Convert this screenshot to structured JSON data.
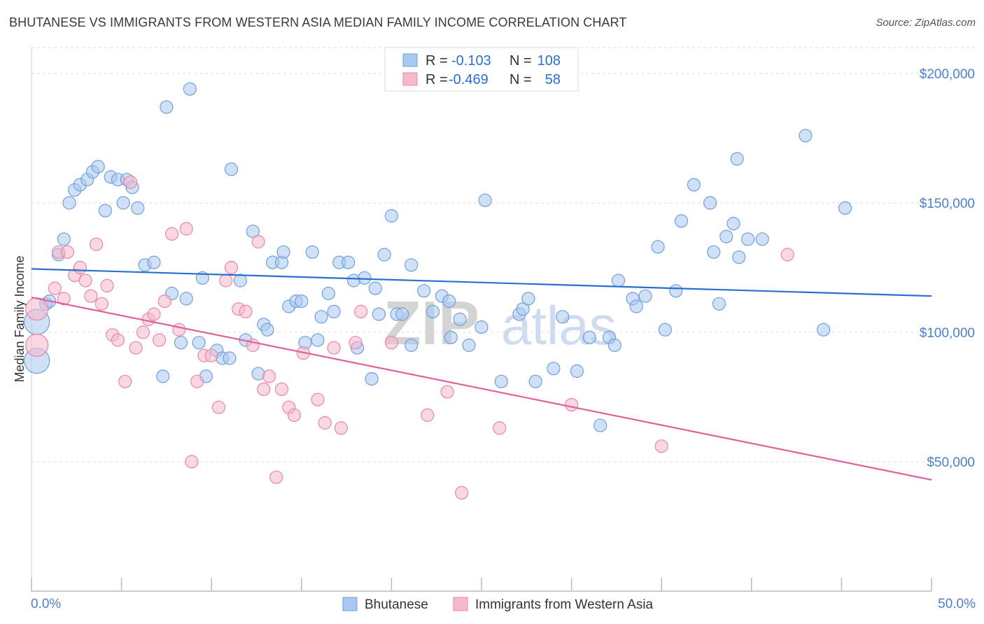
{
  "title": "BHUTANESE VS IMMIGRANTS FROM WESTERN ASIA MEDIAN FAMILY INCOME CORRELATION CHART",
  "source": "Source: ZipAtlas.com",
  "watermark": {
    "zip": "ZIP",
    "atlas": "atlas"
  },
  "legend_top": {
    "rows": [
      {
        "r_label": "R =",
        "r_value": "-0.103",
        "n_label": "N =",
        "n_value": "108"
      },
      {
        "r_label": "R =",
        "r_value": "-0.469",
        "n_label": "N =",
        "n_value": "58"
      }
    ]
  },
  "chart_data": {
    "type": "scatter",
    "title": "BHUTANESE VS IMMIGRANTS FROM WESTERN ASIA MEDIAN FAMILY INCOME CORRELATION CHART",
    "xlabel": "",
    "ylabel": "Median Family Income",
    "xlim": [
      0,
      50
    ],
    "ylim": [
      0,
      210000
    ],
    "x_tick_labels": [
      "0.0%",
      "50.0%"
    ],
    "y_ticks": [
      50000,
      100000,
      150000,
      200000
    ],
    "y_tick_labels": [
      "$50,000",
      "$100,000",
      "$150,000",
      "$200,000"
    ],
    "grid": "horizontal dashed",
    "legend_position": "bottom-center",
    "colors": {
      "blue_fill": "#a9c8f0",
      "blue_stroke": "#6f9fdc",
      "blue_line": "#2a6fcf",
      "pink_fill": "#f6b8cc",
      "pink_stroke": "#e886a8",
      "pink_line": "#e0609a",
      "tick_text": "#4a7fcc"
    },
    "series": [
      {
        "name": "Bhutanese",
        "trend": {
          "x": [
            0,
            50
          ],
          "y": [
            124500,
            114000
          ]
        },
        "points": [
          [
            0.3,
            104000
          ],
          [
            0.3,
            89000
          ],
          [
            0.8,
            111000
          ],
          [
            1.0,
            112000
          ],
          [
            1.5,
            130000
          ],
          [
            1.8,
            136000
          ],
          [
            2.1,
            150000
          ],
          [
            2.4,
            155000
          ],
          [
            2.7,
            157000
          ],
          [
            3.1,
            159000
          ],
          [
            3.4,
            162000
          ],
          [
            3.7,
            164000
          ],
          [
            4.1,
            147000
          ],
          [
            4.4,
            160000
          ],
          [
            4.8,
            159000
          ],
          [
            5.1,
            150000
          ],
          [
            5.3,
            159000
          ],
          [
            5.6,
            156000
          ],
          [
            5.9,
            148000
          ],
          [
            6.3,
            126000
          ],
          [
            6.8,
            127000
          ],
          [
            7.3,
            83000
          ],
          [
            7.5,
            187000
          ],
          [
            7.8,
            115000
          ],
          [
            8.3,
            96000
          ],
          [
            8.6,
            113000
          ],
          [
            8.8,
            194000
          ],
          [
            9.3,
            96000
          ],
          [
            9.5,
            121000
          ],
          [
            9.7,
            83000
          ],
          [
            10.3,
            93000
          ],
          [
            10.6,
            90000
          ],
          [
            11.0,
            90000
          ],
          [
            11.1,
            163000
          ],
          [
            11.6,
            120000
          ],
          [
            11.9,
            97000
          ],
          [
            12.3,
            139000
          ],
          [
            12.6,
            84000
          ],
          [
            12.9,
            103000
          ],
          [
            13.1,
            101000
          ],
          [
            13.4,
            127000
          ],
          [
            13.9,
            127000
          ],
          [
            14.0,
            131000
          ],
          [
            14.3,
            110000
          ],
          [
            14.7,
            112000
          ],
          [
            15.0,
            112000
          ],
          [
            15.2,
            96000
          ],
          [
            15.6,
            131000
          ],
          [
            15.9,
            97000
          ],
          [
            16.1,
            106000
          ],
          [
            16.5,
            115000
          ],
          [
            16.8,
            108000
          ],
          [
            17.1,
            127000
          ],
          [
            17.6,
            127000
          ],
          [
            17.9,
            120000
          ],
          [
            18.1,
            94000
          ],
          [
            18.5,
            121000
          ],
          [
            18.9,
            82000
          ],
          [
            19.1,
            117000
          ],
          [
            19.3,
            107000
          ],
          [
            19.6,
            130000
          ],
          [
            20.0,
            145000
          ],
          [
            20.3,
            107000
          ],
          [
            20.6,
            107000
          ],
          [
            21.1,
            95000
          ],
          [
            21.1,
            126000
          ],
          [
            21.8,
            116000
          ],
          [
            22.3,
            108000
          ],
          [
            22.8,
            114000
          ],
          [
            23.2,
            112000
          ],
          [
            23.3,
            98000
          ],
          [
            23.8,
            105000
          ],
          [
            24.3,
            95000
          ],
          [
            25.0,
            102000
          ],
          [
            25.2,
            151000
          ],
          [
            26.1,
            81000
          ],
          [
            27.1,
            107000
          ],
          [
            27.3,
            109000
          ],
          [
            27.6,
            113000
          ],
          [
            28.0,
            81000
          ],
          [
            29.0,
            86000
          ],
          [
            29.5,
            106000
          ],
          [
            30.3,
            85000
          ],
          [
            31.0,
            98000
          ],
          [
            31.6,
            64000
          ],
          [
            32.1,
            98000
          ],
          [
            32.4,
            95000
          ],
          [
            32.6,
            120000
          ],
          [
            33.4,
            113000
          ],
          [
            33.6,
            110000
          ],
          [
            34.1,
            114000
          ],
          [
            34.8,
            133000
          ],
          [
            35.2,
            101000
          ],
          [
            35.8,
            116000
          ],
          [
            36.1,
            143000
          ],
          [
            36.8,
            157000
          ],
          [
            37.7,
            150000
          ],
          [
            37.9,
            131000
          ],
          [
            38.2,
            111000
          ],
          [
            38.6,
            137000
          ],
          [
            39.0,
            142000
          ],
          [
            39.2,
            167000
          ],
          [
            39.3,
            129000
          ],
          [
            39.8,
            136000
          ],
          [
            40.6,
            136000
          ],
          [
            43.0,
            176000
          ],
          [
            44.0,
            101000
          ],
          [
            45.2,
            148000
          ]
        ]
      },
      {
        "name": "Immigrants from Western Asia",
        "trend": {
          "x": [
            0,
            50
          ],
          "y": [
            113500,
            43000
          ]
        },
        "points": [
          [
            0.3,
            95000
          ],
          [
            0.3,
            109000
          ],
          [
            1.3,
            117000
          ],
          [
            1.5,
            131000
          ],
          [
            1.8,
            113000
          ],
          [
            2.0,
            131000
          ],
          [
            2.4,
            122000
          ],
          [
            2.7,
            125000
          ],
          [
            3.0,
            120000
          ],
          [
            3.3,
            114000
          ],
          [
            3.6,
            134000
          ],
          [
            3.9,
            111000
          ],
          [
            4.2,
            118000
          ],
          [
            4.5,
            99000
          ],
          [
            4.8,
            97000
          ],
          [
            5.2,
            81000
          ],
          [
            5.5,
            158000
          ],
          [
            5.8,
            94000
          ],
          [
            6.2,
            100000
          ],
          [
            6.5,
            105000
          ],
          [
            6.8,
            107000
          ],
          [
            7.1,
            97000
          ],
          [
            7.4,
            112000
          ],
          [
            7.8,
            138000
          ],
          [
            8.2,
            101000
          ],
          [
            8.6,
            140000
          ],
          [
            8.9,
            50000
          ],
          [
            9.2,
            81000
          ],
          [
            9.6,
            91000
          ],
          [
            10.0,
            91000
          ],
          [
            10.4,
            71000
          ],
          [
            10.8,
            120000
          ],
          [
            11.1,
            125000
          ],
          [
            11.5,
            109000
          ],
          [
            11.9,
            108000
          ],
          [
            12.3,
            95000
          ],
          [
            12.6,
            135000
          ],
          [
            12.9,
            78000
          ],
          [
            13.2,
            83000
          ],
          [
            13.6,
            44000
          ],
          [
            13.9,
            78000
          ],
          [
            14.3,
            71000
          ],
          [
            14.6,
            68000
          ],
          [
            15.1,
            92000
          ],
          [
            15.9,
            74000
          ],
          [
            16.3,
            65000
          ],
          [
            16.8,
            94000
          ],
          [
            17.2,
            63000
          ],
          [
            18.0,
            96000
          ],
          [
            18.3,
            108000
          ],
          [
            20.0,
            96000
          ],
          [
            22.0,
            68000
          ],
          [
            23.1,
            77000
          ],
          [
            23.9,
            38000
          ],
          [
            26.0,
            63000
          ],
          [
            30.0,
            72000
          ],
          [
            35.0,
            56000
          ],
          [
            42.0,
            130000
          ]
        ]
      }
    ]
  },
  "bottom_legend": {
    "items": [
      "Bhutanese",
      "Immigrants from Western Asia"
    ]
  }
}
